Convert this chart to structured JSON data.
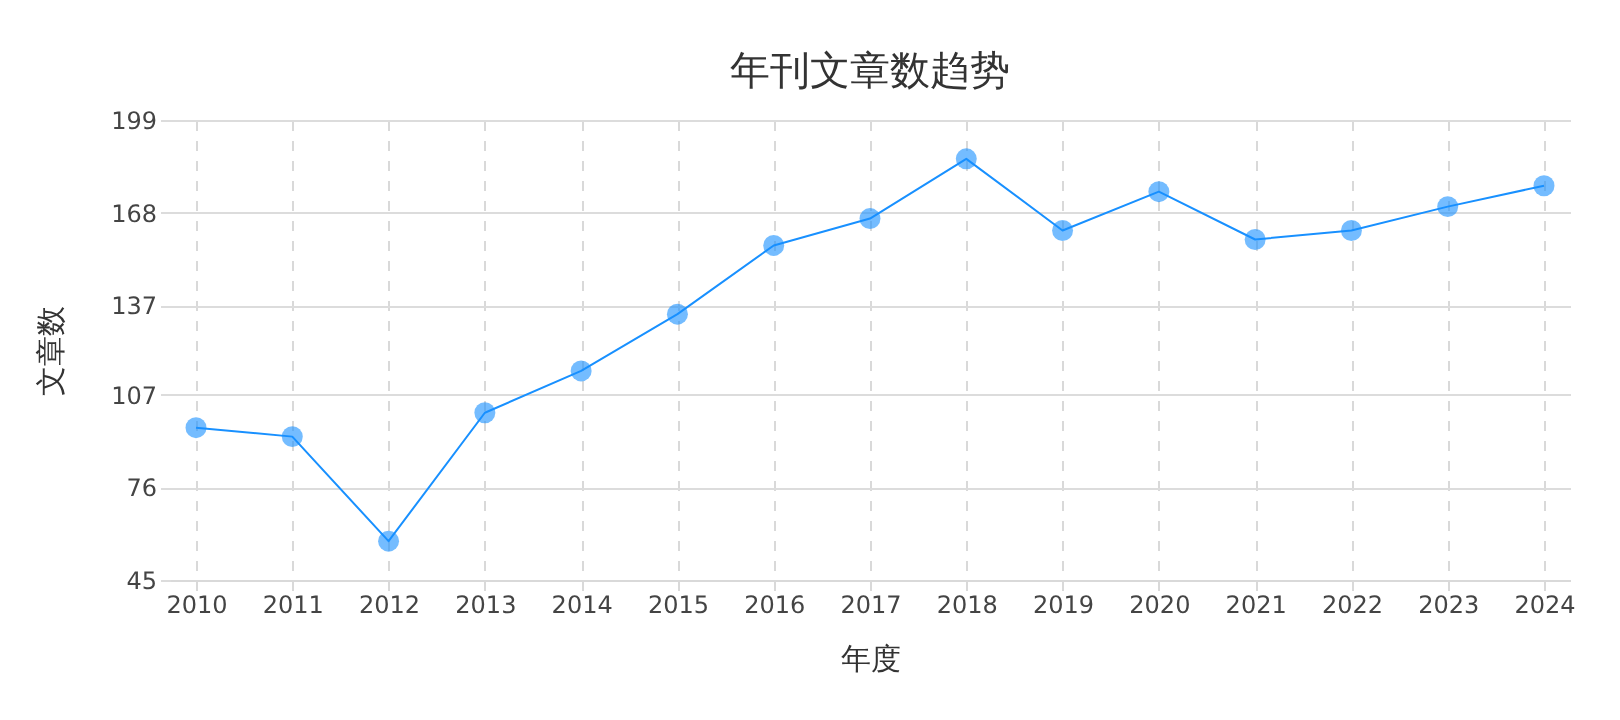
{
  "chart_data": {
    "type": "line",
    "title": "年刊文章数趋势",
    "xlabel": "年度",
    "ylabel": "文章数",
    "categories": [
      "2010",
      "2011",
      "2012",
      "2013",
      "2014",
      "2015",
      "2016",
      "2017",
      "2018",
      "2019",
      "2020",
      "2021",
      "2022",
      "2023",
      "2024"
    ],
    "series": [
      {
        "color": "#1890ff",
        "values": [
          96,
          93,
          58,
          101,
          115,
          134,
          157,
          166,
          186,
          162,
          175,
          159,
          162,
          170,
          177
        ]
      }
    ],
    "ylim": [
      45,
      199
    ],
    "yticks": [
      45,
      76,
      107,
      137,
      168,
      199
    ],
    "grid": true,
    "marker": "circle",
    "line_style": "solid"
  }
}
